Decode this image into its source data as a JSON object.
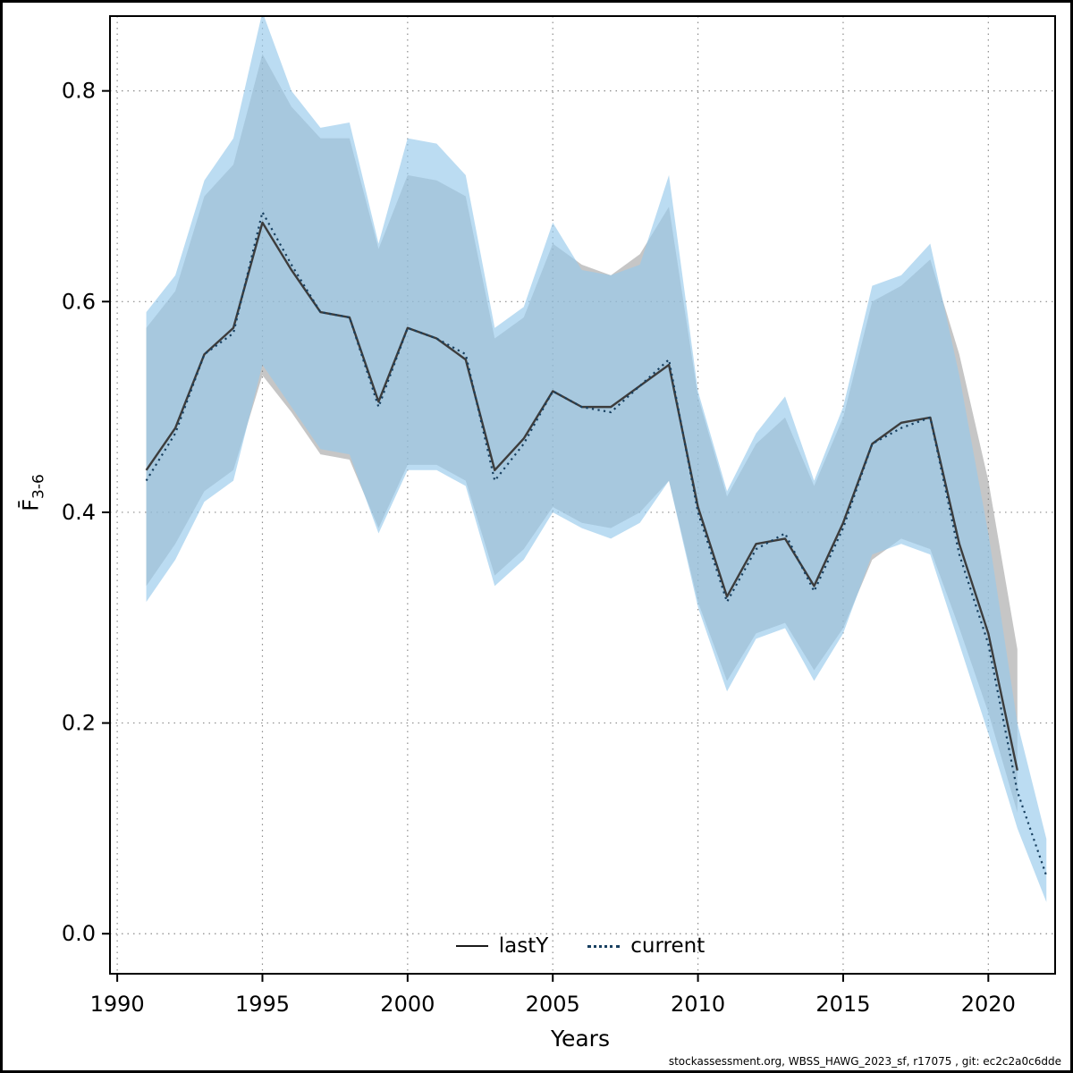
{
  "figure": {
    "xlabel": "Years",
    "ylabel_main": "F̄",
    "ylabel_sub": "3-6",
    "footer": "stockassessment.org, WBSS_HAWG_2023_sf, r17075 , git: ec2c2a0c6dde",
    "legend": [
      {
        "label": "lastY",
        "style": "solid",
        "color": "#1a1a1a"
      },
      {
        "label": "current",
        "style": "dotted",
        "color": "#173f5f"
      }
    ]
  },
  "chart_data": {
    "type": "line",
    "title": "",
    "xlabel": "Years",
    "ylabel": "F_3-6",
    "xlim": [
      1989.75,
      2022.3
    ],
    "ylim": [
      -0.038,
      0.871
    ],
    "xticks": [
      1990,
      1995,
      2000,
      2005,
      2010,
      2015,
      2020
    ],
    "yticks": [
      0.0,
      0.2,
      0.4,
      0.6,
      0.8
    ],
    "grid": true,
    "grid_style": "dotted",
    "legend_position": "bottom-center-inside",
    "x": [
      1991,
      1992,
      1993,
      1994,
      1995,
      1996,
      1997,
      1998,
      1999,
      2000,
      2001,
      2002,
      2003,
      2004,
      2005,
      2006,
      2007,
      2008,
      2009,
      2010,
      2011,
      2012,
      2013,
      2014,
      2015,
      2016,
      2017,
      2018,
      2019,
      2020,
      2021,
      2022
    ],
    "series": [
      {
        "name": "lastY",
        "line": "solid",
        "color": "#3c3c3c",
        "band_color": "rgba(128,128,128,0.45)",
        "values": [
          0.44,
          0.48,
          0.55,
          0.575,
          0.675,
          0.63,
          0.59,
          0.585,
          0.505,
          0.575,
          0.565,
          0.545,
          0.44,
          0.47,
          0.515,
          0.5,
          0.5,
          0.52,
          0.54,
          0.405,
          0.32,
          0.37,
          0.375,
          0.33,
          0.39,
          0.465,
          0.485,
          0.49,
          0.37,
          0.285,
          0.155,
          null
        ],
        "lower": [
          0.33,
          0.37,
          0.42,
          0.44,
          0.53,
          0.495,
          0.455,
          0.45,
          0.385,
          0.445,
          0.445,
          0.43,
          0.34,
          0.365,
          0.405,
          0.39,
          0.385,
          0.4,
          0.43,
          0.315,
          0.24,
          0.285,
          0.295,
          0.25,
          0.29,
          0.355,
          0.375,
          0.365,
          0.29,
          0.21,
          0.115,
          null
        ],
        "upper": [
          0.575,
          0.61,
          0.7,
          0.73,
          0.835,
          0.785,
          0.755,
          0.755,
          0.65,
          0.72,
          0.715,
          0.7,
          0.565,
          0.585,
          0.655,
          0.635,
          0.625,
          0.645,
          0.69,
          0.51,
          0.415,
          0.465,
          0.49,
          0.425,
          0.49,
          0.6,
          0.615,
          0.64,
          0.55,
          0.43,
          0.27,
          null
        ]
      },
      {
        "name": "current",
        "line": "dotted",
        "color": "#173f5f",
        "band_color": "rgba(151,202,235,0.65)",
        "values": [
          0.43,
          0.475,
          0.55,
          0.57,
          0.685,
          0.635,
          0.59,
          0.585,
          0.5,
          0.575,
          0.565,
          0.55,
          0.43,
          0.465,
          0.515,
          0.5,
          0.495,
          0.52,
          0.545,
          0.4,
          0.315,
          0.365,
          0.38,
          0.325,
          0.385,
          0.465,
          0.48,
          0.49,
          0.36,
          0.275,
          0.135,
          0.055
        ],
        "lower": [
          0.315,
          0.355,
          0.41,
          0.43,
          0.54,
          0.5,
          0.46,
          0.455,
          0.38,
          0.44,
          0.44,
          0.425,
          0.33,
          0.355,
          0.4,
          0.385,
          0.375,
          0.39,
          0.43,
          0.31,
          0.23,
          0.28,
          0.29,
          0.24,
          0.285,
          0.36,
          0.37,
          0.36,
          0.275,
          0.19,
          0.1,
          0.03
        ],
        "upper": [
          0.59,
          0.625,
          0.715,
          0.755,
          0.875,
          0.8,
          0.765,
          0.77,
          0.655,
          0.755,
          0.75,
          0.72,
          0.575,
          0.595,
          0.675,
          0.63,
          0.625,
          0.635,
          0.72,
          0.515,
          0.42,
          0.475,
          0.51,
          0.43,
          0.5,
          0.615,
          0.625,
          0.655,
          0.53,
          0.38,
          0.2,
          0.09
        ]
      }
    ]
  }
}
